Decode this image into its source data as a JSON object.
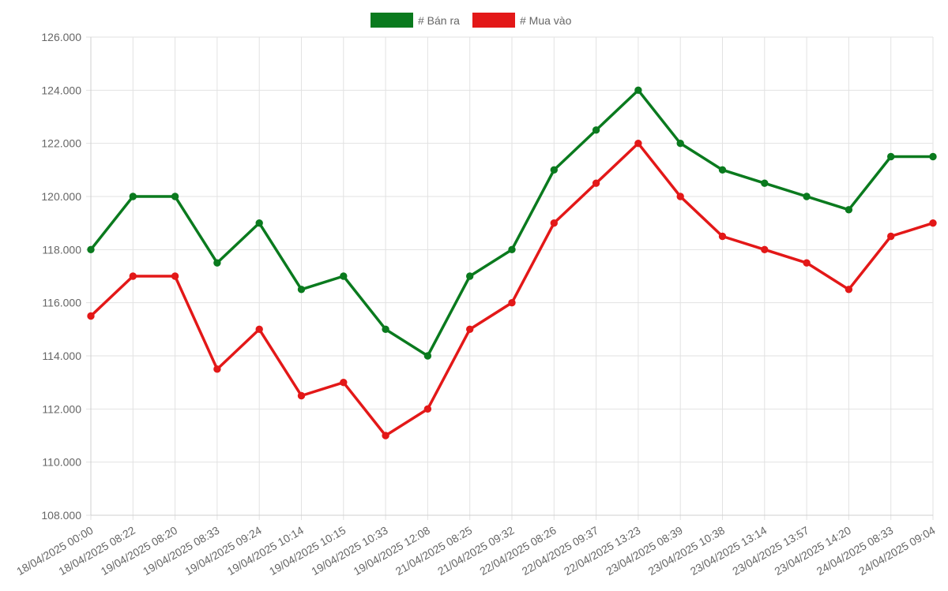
{
  "chart_data": {
    "type": "line",
    "title": "",
    "xlabel": "",
    "ylabel": "",
    "categories": [
      "18/04/2025 00:00",
      "18/04/2025 08:22",
      "19/04/2025 08:20",
      "19/04/2025 08:33",
      "19/04/2025 09:24",
      "19/04/2025 10:14",
      "19/04/2025 10:15",
      "19/04/2025 10:33",
      "19/04/2025 12:08",
      "21/04/2025 08:25",
      "21/04/2025 09:32",
      "22/04/2025 08:26",
      "22/04/2025 09:37",
      "22/04/2025 13:23",
      "23/04/2025 08:39",
      "23/04/2025 10:38",
      "23/04/2025 13:14",
      "23/04/2025 13:57",
      "23/04/2025 14:20",
      "24/04/2025 08:33",
      "24/04/2025 09:04"
    ],
    "series": [
      {
        "name": "# Bán ra",
        "color": "#0a7a1e",
        "values": [
          118000,
          120000,
          120000,
          117500,
          119000,
          116500,
          117000,
          115000,
          114000,
          117000,
          118000,
          121000,
          122500,
          124000,
          122000,
          121000,
          120500,
          120000,
          119500,
          121500,
          121500
        ]
      },
      {
        "name": "# Mua vào",
        "color": "#e31818",
        "values": [
          115500,
          117000,
          117000,
          113500,
          115000,
          112500,
          113000,
          111000,
          112000,
          115000,
          116000,
          119000,
          120500,
          122000,
          120000,
          118500,
          118000,
          117500,
          116500,
          118500,
          119000
        ]
      }
    ],
    "ylim": [
      108000,
      126000
    ],
    "yticks": [
      108000,
      110000,
      112000,
      114000,
      116000,
      118000,
      120000,
      122000,
      124000,
      126000
    ],
    "ytick_labels": [
      "108.000",
      "110.000",
      "112.000",
      "114.000",
      "116.000",
      "118.000",
      "120.000",
      "122.000",
      "124.000",
      "126.000"
    ],
    "grid": true,
    "legend_position": "top-center"
  }
}
